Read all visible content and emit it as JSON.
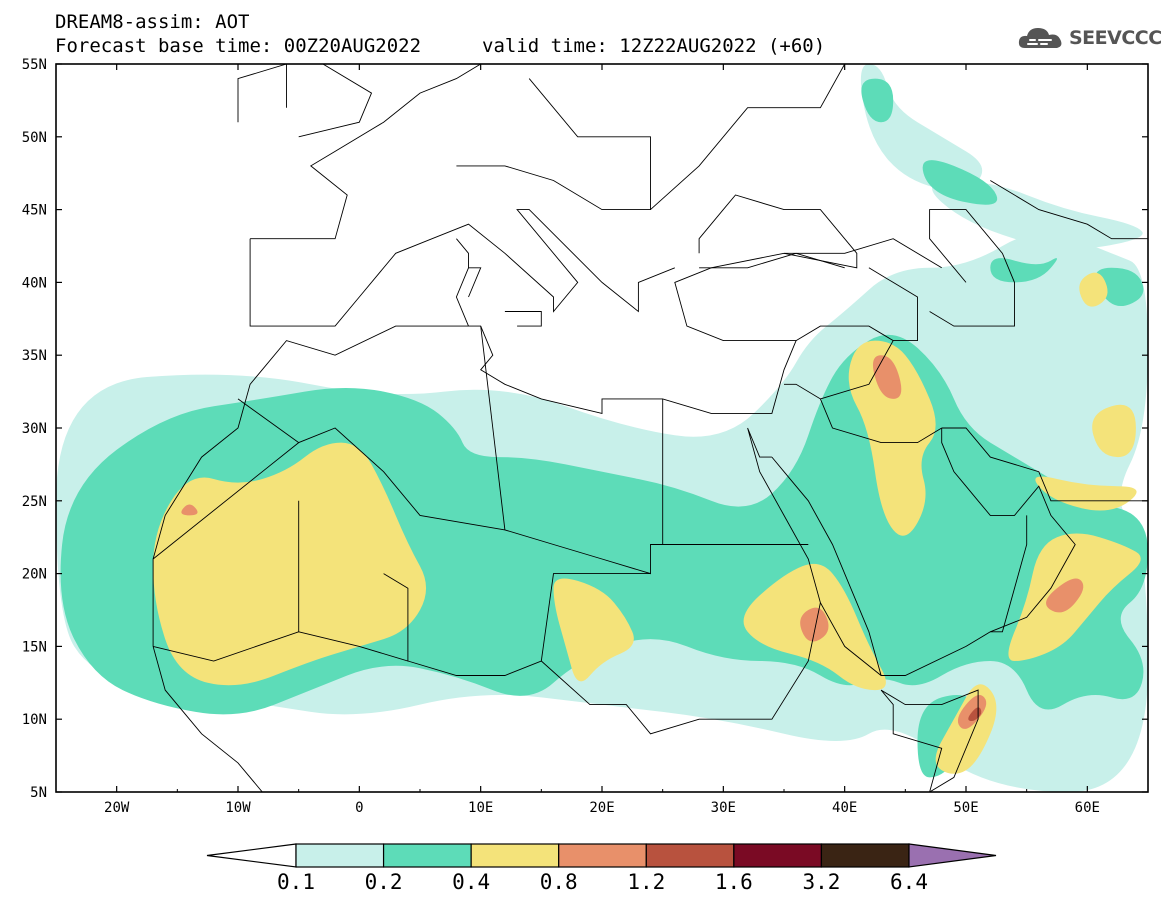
{
  "title": {
    "line1": "DREAM8-assim: AOT",
    "base_time": "Forecast base time: 00Z20AUG2022",
    "valid_time": "valid time: 12Z22AUG2022 (+60)"
  },
  "logo": {
    "icon": "cloud-logo-icon",
    "text": "SEEVCCC"
  },
  "chart_data": {
    "type": "heatmap",
    "title": "DREAM8-assim: AOT",
    "variable": "AOT",
    "projection": "lat-lon",
    "lon_range": [
      -25,
      65
    ],
    "lat_range": [
      5,
      55
    ],
    "x_ticks": [
      {
        "value": -20,
        "label": "20W"
      },
      {
        "value": -10,
        "label": "10W"
      },
      {
        "value": 0,
        "label": "0"
      },
      {
        "value": 10,
        "label": "10E"
      },
      {
        "value": 20,
        "label": "20E"
      },
      {
        "value": 30,
        "label": "30E"
      },
      {
        "value": 40,
        "label": "40E"
      },
      {
        "value": 50,
        "label": "50E"
      },
      {
        "value": 60,
        "label": "60E"
      }
    ],
    "y_ticks": [
      {
        "value": 55,
        "label": "55N"
      },
      {
        "value": 50,
        "label": "50N"
      },
      {
        "value": 45,
        "label": "45N"
      },
      {
        "value": 40,
        "label": "40N"
      },
      {
        "value": 35,
        "label": "35N"
      },
      {
        "value": 30,
        "label": "30N"
      },
      {
        "value": 25,
        "label": "25N"
      },
      {
        "value": 20,
        "label": "20N"
      },
      {
        "value": 15,
        "label": "15N"
      },
      {
        "value": 10,
        "label": "10N"
      },
      {
        "value": 5,
        "label": "5N"
      }
    ],
    "levels": [
      "0.1",
      "0.2",
      "0.4",
      "0.8",
      "1.2",
      "1.6",
      "3.2",
      "6.4"
    ],
    "level_colors": [
      "#c8f0ea",
      "#5ddcb8",
      "#f4e37a",
      "#e8906a",
      "#b8523e",
      "#7a0a24",
      "#3a2414",
      "#9a70b0"
    ],
    "fields": [
      {
        "level": 0.1,
        "color": "#c8f0ea",
        "areas": [
          [
            [
              -25,
              33
            ],
            [
              -10,
              34
            ],
            [
              2,
              32
            ],
            [
              12,
              33
            ],
            [
              22,
              30
            ],
            [
              30,
              29
            ],
            [
              35,
              33
            ],
            [
              37,
              36
            ],
            [
              40,
              38
            ],
            [
              44,
              41
            ],
            [
              50,
              41
            ],
            [
              56,
              44
            ],
            [
              62,
              42
            ],
            [
              65,
              41
            ],
            [
              65,
              30
            ],
            [
              62,
              25
            ],
            [
              65,
              22
            ],
            [
              65,
              5
            ],
            [
              52,
              5
            ],
            [
              44,
              10
            ],
            [
              40,
              8
            ],
            [
              30,
              10
            ],
            [
              20,
              11
            ],
            [
              10,
              12
            ],
            [
              0,
              10
            ],
            [
              -8,
              11
            ],
            [
              -15,
              12
            ],
            [
              -22,
              13
            ],
            [
              -25,
              17
            ]
          ],
          [
            [
              41,
              55
            ],
            [
              43,
              55
            ],
            [
              44,
              52
            ],
            [
              48,
              50
            ],
            [
              52,
              48
            ],
            [
              50,
              46
            ],
            [
              45,
              47
            ],
            [
              42,
              50
            ]
          ],
          [
            [
              46,
              47
            ],
            [
              52,
              47
            ],
            [
              58,
              45
            ],
            [
              64,
              44
            ],
            [
              65,
              43
            ],
            [
              58,
              42
            ],
            [
              50,
              44
            ]
          ]
        ]
      },
      {
        "level": 0.2,
        "color": "#5ddcb8",
        "areas": [
          [
            [
              -24,
              26
            ],
            [
              -16,
              31
            ],
            [
              -8,
              32
            ],
            [
              -1,
              33
            ],
            [
              5,
              32
            ],
            [
              8,
              30
            ],
            [
              9,
              28
            ],
            [
              14,
              28
            ],
            [
              20,
              27
            ],
            [
              26,
              26
            ],
            [
              32,
              24
            ],
            [
              36,
              27
            ],
            [
              38,
              32
            ],
            [
              40,
              35
            ],
            [
              44,
              37
            ],
            [
              48,
              34
            ],
            [
              50,
              30
            ],
            [
              54,
              28
            ],
            [
              60,
              25
            ],
            [
              65,
              24
            ],
            [
              65,
              19
            ],
            [
              62,
              17
            ],
            [
              65,
              14
            ],
            [
              64,
              11
            ],
            [
              60,
              12
            ],
            [
              56,
              10
            ],
            [
              54,
              14
            ],
            [
              50,
              14
            ],
            [
              46,
              12
            ],
            [
              43,
              13
            ],
            [
              40,
              12
            ],
            [
              36,
              14
            ],
            [
              30,
              14
            ],
            [
              24,
              16
            ],
            [
              18,
              14
            ],
            [
              14,
              11
            ],
            [
              8,
              13
            ],
            [
              2,
              14
            ],
            [
              -4,
              12
            ],
            [
              -10,
              10
            ],
            [
              -17,
              11
            ],
            [
              -22,
              13
            ],
            [
              -25,
              18
            ]
          ],
          [
            [
              41,
              54
            ],
            [
              44,
              54
            ],
            [
              44,
              51
            ],
            [
              42,
              51
            ]
          ],
          [
            [
              46,
              49
            ],
            [
              52,
              47
            ],
            [
              53,
              45
            ],
            [
              47,
              46
            ]
          ],
          [
            [
              52,
              42
            ],
            [
              56,
              41
            ],
            [
              58,
              42
            ],
            [
              56,
              40
            ],
            [
              52,
              40
            ]
          ],
          [
            [
              60,
              41
            ],
            [
              64,
              41
            ],
            [
              65,
              39
            ],
            [
              62,
              38
            ]
          ],
          [
            [
              46,
              11
            ],
            [
              50,
              12
            ],
            [
              52,
              10
            ],
            [
              50,
              8
            ],
            [
              48,
              6
            ],
            [
              46,
              6
            ]
          ]
        ]
      },
      {
        "level": 0.4,
        "color": "#f4e37a",
        "areas": [
          [
            [
              -17,
              23
            ],
            [
              -14,
              27
            ],
            [
              -10,
              26
            ],
            [
              -6,
              27
            ],
            [
              -3,
              29
            ],
            [
              0,
              29
            ],
            [
              2,
              26
            ],
            [
              4,
              22
            ],
            [
              6,
              19
            ],
            [
              4,
              16
            ],
            [
              0,
              15
            ],
            [
              -4,
              14
            ],
            [
              -10,
              12
            ],
            [
              -15,
              13
            ],
            [
              -17,
              18
            ]
          ],
          [
            [
              16,
              20
            ],
            [
              20,
              19
            ],
            [
              22,
              17
            ],
            [
              23,
              15
            ],
            [
              20,
              14
            ],
            [
              18,
              12
            ],
            [
              17,
              15
            ],
            [
              16,
              18
            ]
          ],
          [
            [
              31,
              17
            ],
            [
              35,
              20
            ],
            [
              38,
              21
            ],
            [
              40,
              19
            ],
            [
              42,
              15
            ],
            [
              44,
              12
            ],
            [
              41,
              12
            ],
            [
              38,
              14
            ],
            [
              33,
              15
            ]
          ],
          [
            [
              41,
              36
            ],
            [
              44,
              36
            ],
            [
              46,
              34
            ],
            [
              48,
              30
            ],
            [
              46,
              28
            ],
            [
              47,
              25
            ],
            [
              45,
              22
            ],
            [
              43,
              24
            ],
            [
              42,
              30
            ],
            [
              40,
              33
            ]
          ],
          [
            [
              53,
              14
            ],
            [
              55,
              18
            ],
            [
              56,
              22
            ],
            [
              59,
              23
            ],
            [
              63,
              22
            ],
            [
              65,
              21
            ],
            [
              62,
              19
            ],
            [
              60,
              17
            ],
            [
              58,
              15
            ],
            [
              55,
              14
            ]
          ],
          [
            [
              55,
              27
            ],
            [
              60,
              26
            ],
            [
              65,
              26
            ],
            [
              62,
              24
            ],
            [
              57,
              25
            ]
          ],
          [
            [
              60,
              31
            ],
            [
              64,
              32
            ],
            [
              64,
              28
            ],
            [
              61,
              28
            ]
          ],
          [
            [
              47,
              7
            ],
            [
              49,
              10
            ],
            [
              51,
              13
            ],
            [
              53,
              11
            ],
            [
              51,
              7
            ],
            [
              49,
              6
            ]
          ],
          [
            [
              59,
              40
            ],
            [
              61,
              41
            ],
            [
              62,
              39
            ],
            [
              60,
              38
            ]
          ]
        ]
      },
      {
        "level": 0.8,
        "color": "#e8906a",
        "areas": [
          [
            [
              42,
              35
            ],
            [
              44,
              35
            ],
            [
              45,
              32
            ],
            [
              43,
              32
            ]
          ],
          [
            [
              56,
              18
            ],
            [
              59,
              20
            ],
            [
              60,
              19
            ],
            [
              58,
              17
            ]
          ],
          [
            [
              36,
              17
            ],
            [
              38,
              18
            ],
            [
              39,
              16
            ],
            [
              37,
              15
            ]
          ],
          [
            [
              49,
              10
            ],
            [
              51,
              12
            ],
            [
              52,
              11
            ],
            [
              50,
              9
            ]
          ],
          [
            [
              -15,
              24
            ],
            [
              -14,
              25
            ],
            [
              -13,
              24
            ]
          ]
        ]
      },
      {
        "level": 1.2,
        "color": "#b8523e",
        "areas": [
          [
            [
              50,
              10
            ],
            [
              51,
              11
            ],
            [
              51.4,
              10.4
            ],
            [
              50.6,
              9.8
            ]
          ]
        ]
      }
    ]
  }
}
